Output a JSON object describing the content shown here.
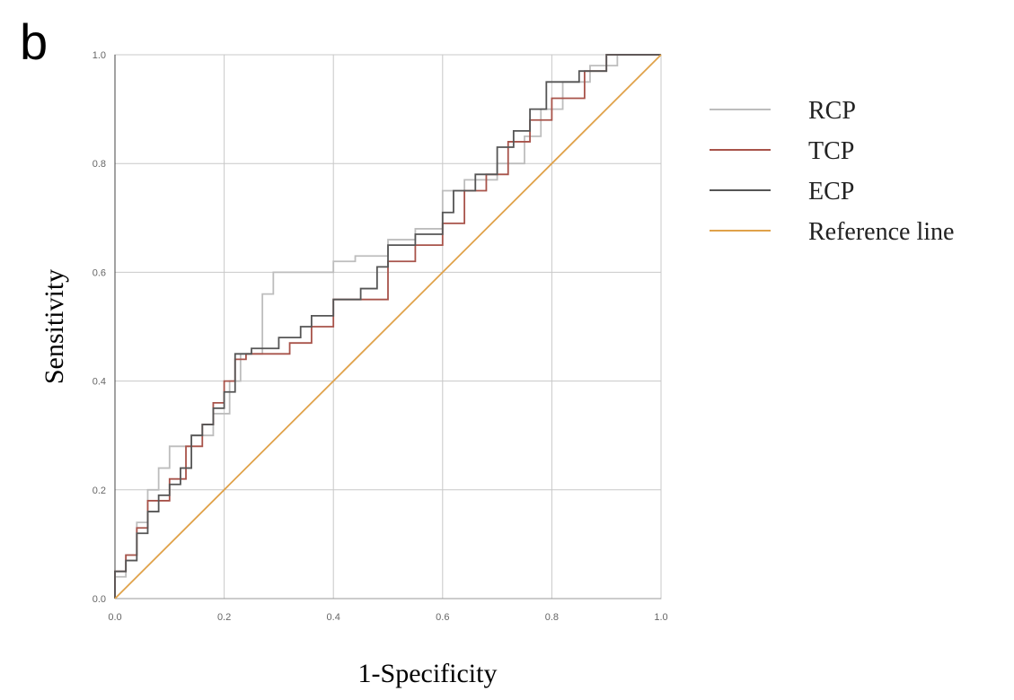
{
  "chart_data": {
    "type": "line",
    "panel_label": "b",
    "xlabel": "1-Specificity",
    "ylabel": "Sensitivity",
    "xlim": [
      0,
      1
    ],
    "ylim": [
      0,
      1
    ],
    "xticks": [
      {
        "value": 0,
        "label": "0.0"
      },
      0.2,
      0.4,
      0.6,
      0.8,
      {
        "value": 1,
        "label": "1.0"
      }
    ],
    "yticks": [
      {
        "value": 0,
        "label": "0.0"
      },
      0.2,
      0.4,
      0.6,
      0.8,
      {
        "value": 1,
        "label": "1.0"
      }
    ],
    "grid": true,
    "step": true,
    "legend": "right",
    "series": [
      {
        "name": "RCP",
        "color": "#bdbdbd",
        "x": [
          0,
          0,
          0.02,
          0.02,
          0.04,
          0.04,
          0.06,
          0.06,
          0.08,
          0.08,
          0.1,
          0.1,
          0.14,
          0.14,
          0.18,
          0.18,
          0.21,
          0.21,
          0.23,
          0.23,
          0.27,
          0.27,
          0.29,
          0.29,
          0.4,
          0.4,
          0.44,
          0.44,
          0.5,
          0.5,
          0.55,
          0.55,
          0.6,
          0.6,
          0.64,
          0.64,
          0.7,
          0.7,
          0.75,
          0.75,
          0.78,
          0.78,
          0.82,
          0.82,
          0.87,
          0.87,
          0.92,
          0.92,
          1
        ],
        "values": [
          0,
          0.04,
          0.04,
          0.08,
          0.08,
          0.14,
          0.14,
          0.2,
          0.2,
          0.24,
          0.24,
          0.28,
          0.28,
          0.3,
          0.3,
          0.34,
          0.34,
          0.4,
          0.4,
          0.45,
          0.45,
          0.56,
          0.56,
          0.6,
          0.6,
          0.62,
          0.62,
          0.63,
          0.63,
          0.66,
          0.66,
          0.68,
          0.68,
          0.75,
          0.75,
          0.77,
          0.77,
          0.8,
          0.8,
          0.85,
          0.85,
          0.9,
          0.9,
          0.95,
          0.95,
          0.98,
          0.98,
          1,
          1
        ]
      },
      {
        "name": "TCP",
        "color": "#a8534a",
        "x": [
          0,
          0,
          0.02,
          0.02,
          0.04,
          0.04,
          0.06,
          0.06,
          0.1,
          0.1,
          0.13,
          0.13,
          0.16,
          0.16,
          0.18,
          0.18,
          0.2,
          0.2,
          0.22,
          0.22,
          0.24,
          0.24,
          0.32,
          0.32,
          0.36,
          0.36,
          0.4,
          0.4,
          0.5,
          0.5,
          0.55,
          0.55,
          0.6,
          0.6,
          0.64,
          0.64,
          0.68,
          0.68,
          0.72,
          0.72,
          0.76,
          0.76,
          0.8,
          0.8,
          0.86,
          0.86,
          0.9,
          0.9,
          1
        ],
        "values": [
          0,
          0.05,
          0.05,
          0.08,
          0.08,
          0.13,
          0.13,
          0.18,
          0.18,
          0.22,
          0.22,
          0.28,
          0.28,
          0.32,
          0.32,
          0.36,
          0.36,
          0.4,
          0.4,
          0.44,
          0.44,
          0.45,
          0.45,
          0.47,
          0.47,
          0.5,
          0.5,
          0.55,
          0.55,
          0.62,
          0.62,
          0.65,
          0.65,
          0.69,
          0.69,
          0.75,
          0.75,
          0.78,
          0.78,
          0.84,
          0.84,
          0.88,
          0.88,
          0.92,
          0.92,
          0.97,
          0.97,
          1,
          1
        ]
      },
      {
        "name": "ECP",
        "color": "#555555",
        "x": [
          0,
          0,
          0.02,
          0.02,
          0.04,
          0.04,
          0.06,
          0.06,
          0.08,
          0.08,
          0.1,
          0.1,
          0.12,
          0.12,
          0.14,
          0.14,
          0.16,
          0.16,
          0.18,
          0.18,
          0.2,
          0.2,
          0.22,
          0.22,
          0.25,
          0.25,
          0.3,
          0.3,
          0.34,
          0.34,
          0.36,
          0.36,
          0.4,
          0.4,
          0.45,
          0.45,
          0.48,
          0.48,
          0.5,
          0.5,
          0.55,
          0.55,
          0.6,
          0.6,
          0.62,
          0.62,
          0.66,
          0.66,
          0.7,
          0.7,
          0.73,
          0.73,
          0.76,
          0.76,
          0.79,
          0.79,
          0.85,
          0.85,
          0.9,
          0.9,
          1
        ],
        "values": [
          0,
          0.05,
          0.05,
          0.07,
          0.07,
          0.12,
          0.12,
          0.16,
          0.16,
          0.19,
          0.19,
          0.21,
          0.21,
          0.24,
          0.24,
          0.3,
          0.3,
          0.32,
          0.32,
          0.35,
          0.35,
          0.38,
          0.38,
          0.45,
          0.45,
          0.46,
          0.46,
          0.48,
          0.48,
          0.5,
          0.5,
          0.52,
          0.52,
          0.55,
          0.55,
          0.57,
          0.57,
          0.61,
          0.61,
          0.65,
          0.65,
          0.67,
          0.67,
          0.71,
          0.71,
          0.75,
          0.75,
          0.78,
          0.78,
          0.83,
          0.83,
          0.86,
          0.86,
          0.9,
          0.9,
          0.95,
          0.95,
          0.97,
          0.97,
          1,
          1
        ]
      },
      {
        "name": "Reference line",
        "color": "#e0a24a",
        "x": [
          0,
          1
        ],
        "values": [
          0,
          1
        ]
      }
    ]
  }
}
